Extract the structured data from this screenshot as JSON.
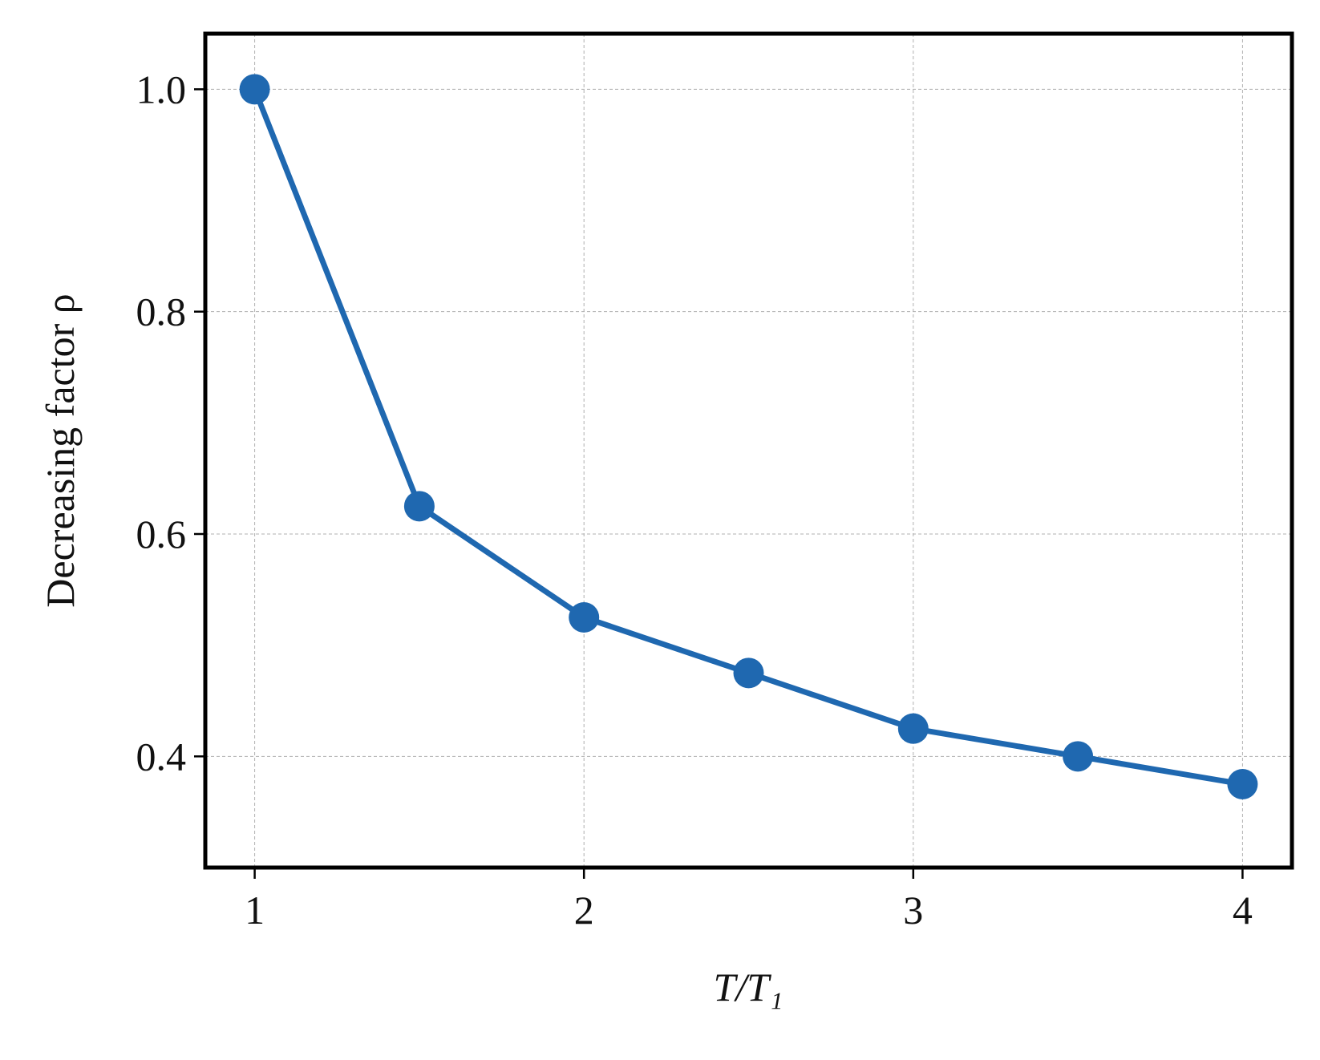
{
  "chart_data": {
    "type": "line",
    "x_label": "T/T₁",
    "y_label": "Decreasing factor ρ",
    "x": [
      1,
      1.5,
      2,
      2.5,
      3,
      3.5,
      4
    ],
    "series": [
      {
        "color": "#1f68b0",
        "values": [
          1.0,
          0.625,
          0.525,
          0.475,
          0.425,
          0.4,
          0.375
        ]
      }
    ],
    "xlim": [
      0.85,
      4.15
    ],
    "ylim": [
      0.3,
      1.05
    ],
    "xticks": [
      1,
      2,
      3,
      4
    ],
    "yticks": [
      {
        "value": 0.4,
        "label": "0.4"
      },
      {
        "value": 0.6,
        "label": "0.6"
      },
      {
        "value": 0.8,
        "label": "0.8"
      },
      {
        "value": 1.0,
        "label": "1.0"
      }
    ],
    "grid": true
  }
}
